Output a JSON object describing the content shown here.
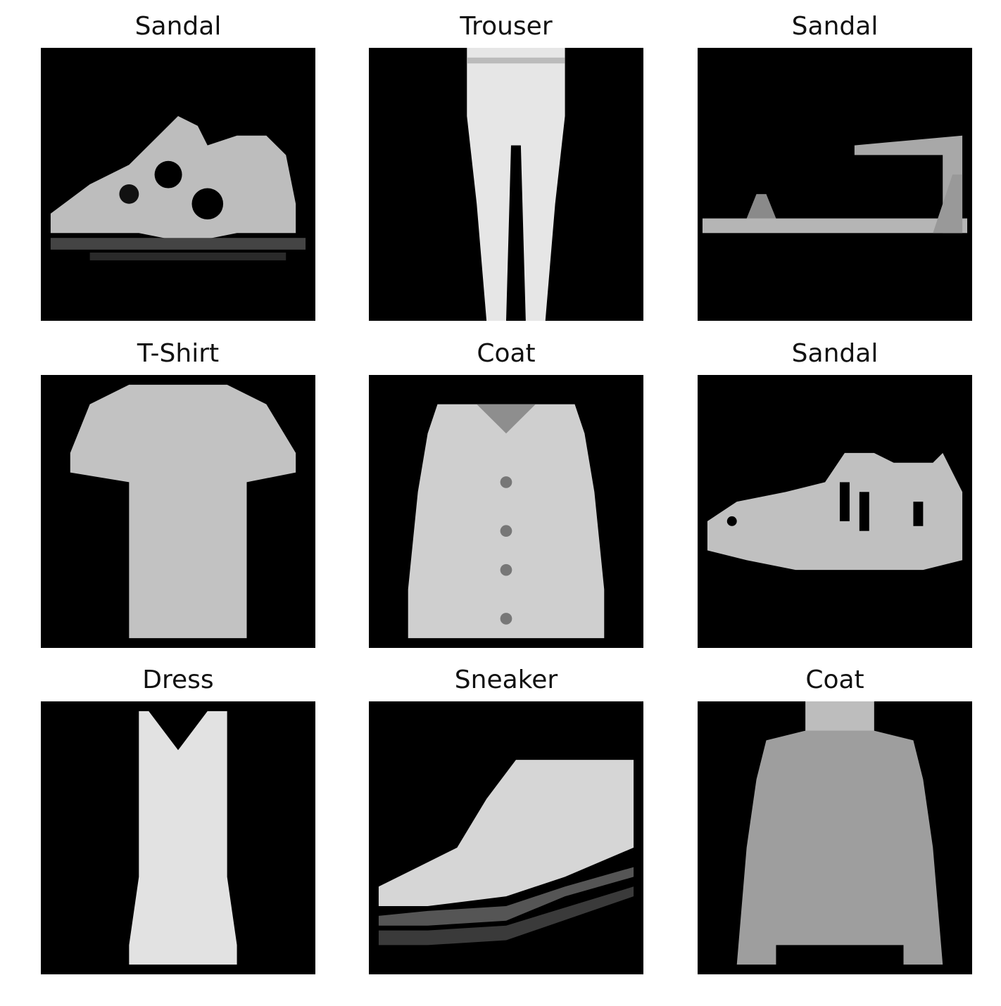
{
  "grid": {
    "items": [
      {
        "label": "Sandal"
      },
      {
        "label": "Trouser"
      },
      {
        "label": "Sandal"
      },
      {
        "label": "T-Shirt"
      },
      {
        "label": "Coat"
      },
      {
        "label": "Sandal"
      },
      {
        "label": "Dress"
      },
      {
        "label": "Sneaker"
      },
      {
        "label": "Coat"
      }
    ]
  }
}
